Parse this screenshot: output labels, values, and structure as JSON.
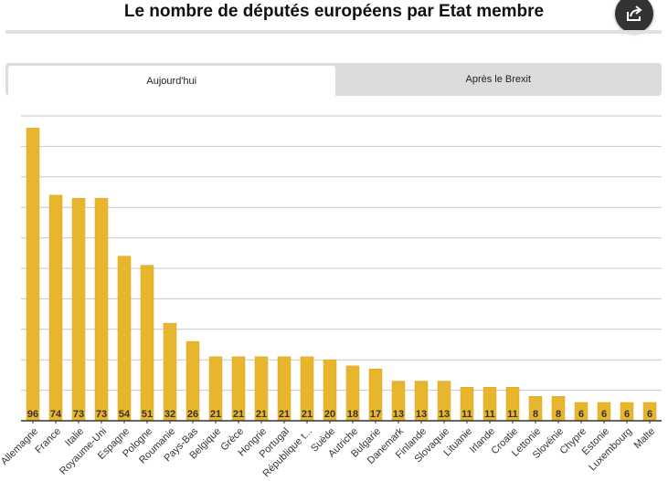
{
  "header": {
    "title": "Le nombre de députés européens par Etat membre",
    "share_icon": "share-icon"
  },
  "tabs": [
    {
      "label": "Aujourd'hui",
      "active": true
    },
    {
      "label": "Après le Brexit",
      "active": false
    }
  ],
  "colors": {
    "bar": "#E8B62D",
    "bar_stroke": "#d9a51f",
    "grid": "#c8c8c8",
    "axis": "#333333"
  },
  "chart_data": {
    "type": "bar",
    "title": "",
    "xlabel": "",
    "ylabel": "",
    "ylim": [
      0,
      100
    ],
    "grid": true,
    "categories": [
      "Allemagne",
      "France",
      "Italie",
      "Royaume-Uni",
      "Espagne",
      "Pologne",
      "Roumanie",
      "Pays-Bas",
      "Belgique",
      "Grèce",
      "Hongrie",
      "Portugal",
      "République t...",
      "Suède",
      "Autriche",
      "Bulgarie",
      "Danemark",
      "Finlande",
      "Slovaquie",
      "Lituanie",
      "Irlande",
      "Croatie",
      "Lettonie",
      "Slovénie",
      "Chypre",
      "Estonie",
      "Luxembourg",
      "Malte"
    ],
    "values": [
      96,
      74,
      73,
      73,
      54,
      51,
      32,
      26,
      21,
      21,
      21,
      21,
      21,
      20,
      18,
      17,
      13,
      13,
      13,
      11,
      11,
      11,
      8,
      8,
      6,
      6,
      6,
      6
    ]
  }
}
